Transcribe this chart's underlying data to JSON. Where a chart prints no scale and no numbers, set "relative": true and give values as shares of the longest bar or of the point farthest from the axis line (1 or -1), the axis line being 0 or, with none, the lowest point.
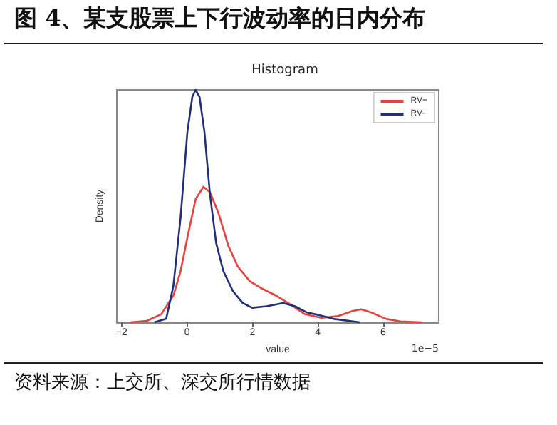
{
  "chart_data": {
    "type": "line",
    "title": "图 4、某支股票上下行波动率的日内分布",
    "subtitle": "Histogram",
    "xlabel": "value",
    "ylabel": "Density",
    "relative": true,
    "annotations": [
      "1e−5",
      "资料来源：上交所、深交所行情数据"
    ],
    "xlim": [
      -2.15,
      7.7
    ],
    "xticks": [
      {
        "value": -2,
        "label": "−2"
      },
      0,
      2,
      4,
      6
    ],
    "tick_labels": "x",
    "legend": "top right",
    "marker": "none",
    "line_style": "solid",
    "grid": false,
    "series": [
      {
        "name": "RV+",
        "color": "#e8413c",
        "x": [
          -1.74,
          -1.23,
          -0.79,
          -0.42,
          -0.2,
          0.01,
          0.26,
          0.5,
          0.7,
          0.96,
          1.26,
          1.55,
          1.92,
          2.28,
          2.72,
          3.16,
          3.6,
          4.11,
          4.62,
          5.06,
          5.32,
          5.64,
          6.08,
          6.52,
          7.18
        ],
        "values": [
          0,
          0.006,
          0.035,
          0.115,
          0.22,
          0.365,
          0.53,
          0.583,
          0.56,
          0.47,
          0.33,
          0.24,
          0.177,
          0.146,
          0.115,
          0.077,
          0.035,
          0.019,
          0.027,
          0.048,
          0.056,
          0.042,
          0.015,
          0.004,
          0
        ]
      },
      {
        "name": "RV-",
        "color": "#1f2f7a",
        "x": [
          -1.0,
          -0.64,
          -0.42,
          -0.2,
          0.01,
          0.16,
          0.26,
          0.38,
          0.53,
          0.7,
          0.89,
          1.11,
          1.4,
          1.7,
          1.99,
          2.43,
          2.94,
          3.3,
          3.67,
          4.04,
          4.47,
          5.28
        ],
        "values": [
          0,
          0.015,
          0.156,
          0.45,
          0.82,
          0.97,
          1.0,
          0.97,
          0.82,
          0.55,
          0.34,
          0.22,
          0.135,
          0.083,
          0.0625,
          0.069,
          0.083,
          0.069,
          0.042,
          0.031,
          0.015,
          0
        ]
      }
    ]
  }
}
